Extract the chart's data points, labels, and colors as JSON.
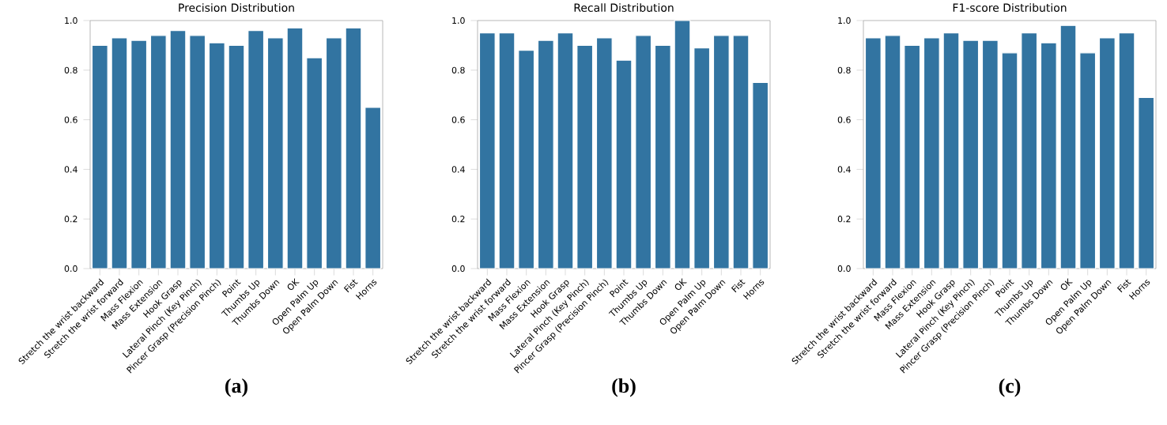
{
  "chart_data": [
    {
      "type": "bar",
      "title": "Precision Distribution",
      "categories": [
        "Stretch the wrist backward",
        "Stretch the wrist forward",
        "Mass Flexion",
        "Mass Extension",
        "Hook Grasp",
        "Lateral Pinch (Key Pinch)",
        "Pincer Grasp (Precision Pinch)",
        "Point",
        "Thumbs Up",
        "Thumbs Down",
        "OK",
        "Open Palm Up",
        "Open Palm Down",
        "Fist",
        "Horns"
      ],
      "values": [
        0.9,
        0.93,
        0.92,
        0.94,
        0.96,
        0.94,
        0.91,
        0.9,
        0.96,
        0.93,
        0.97,
        0.85,
        0.93,
        0.97,
        0.65
      ],
      "color": "#3274a1",
      "ylim": [
        0,
        1
      ],
      "yticks": [
        {
          "value": 0,
          "label": "0.0"
        },
        {
          "value": 0.2,
          "label": "0.2"
        },
        {
          "value": 0.4,
          "label": "0.4"
        },
        {
          "value": 0.6,
          "label": "0.6"
        },
        {
          "value": 0.8,
          "label": "0.8"
        },
        {
          "value": 1,
          "label": "1.0"
        }
      ],
      "annotations": [
        "(a)"
      ]
    },
    {
      "type": "bar",
      "title": "Recall Distribution",
      "categories": [
        "Stretch the wrist backward",
        "Stretch the wrist forward",
        "Mass Flexion",
        "Mass Extension",
        "Hook Grasp",
        "Lateral Pinch (Key Pinch)",
        "Pincer Grasp (Precision Pinch)",
        "Point",
        "Thumbs Up",
        "Thumbs Down",
        "OK",
        "Open Palm Up",
        "Open Palm Down",
        "Fist",
        "Horns"
      ],
      "values": [
        0.95,
        0.95,
        0.88,
        0.92,
        0.95,
        0.9,
        0.93,
        0.84,
        0.94,
        0.9,
        1.0,
        0.89,
        0.94,
        0.94,
        0.75
      ],
      "color": "#3274a1",
      "ylim": [
        0,
        1
      ],
      "yticks": [
        {
          "value": 0,
          "label": "0.0"
        },
        {
          "value": 0.2,
          "label": "0.2"
        },
        {
          "value": 0.4,
          "label": "0.4"
        },
        {
          "value": 0.6,
          "label": "0.6"
        },
        {
          "value": 0.8,
          "label": "0.8"
        },
        {
          "value": 1,
          "label": "1.0"
        }
      ],
      "annotations": [
        "(b)"
      ]
    },
    {
      "type": "bar",
      "title": "F1-score Distribution",
      "categories": [
        "Stretch the wrist backward",
        "Stretch the wrist forward",
        "Mass Flexion",
        "Mass Extension",
        "Hook Grasp",
        "Lateral Pinch (Key Pinch)",
        "Pincer Grasp (Precision Pinch)",
        "Point",
        "Thumbs Up",
        "Thumbs Down",
        "OK",
        "Open Palm Up",
        "Open Palm Down",
        "Fist",
        "Horns"
      ],
      "values": [
        0.93,
        0.94,
        0.9,
        0.93,
        0.95,
        0.92,
        0.92,
        0.87,
        0.95,
        0.91,
        0.98,
        0.87,
        0.93,
        0.95,
        0.69
      ],
      "color": "#3274a1",
      "ylim": [
        0,
        1
      ],
      "yticks": [
        {
          "value": 0,
          "label": "0.0"
        },
        {
          "value": 0.2,
          "label": "0.2"
        },
        {
          "value": 0.4,
          "label": "0.4"
        },
        {
          "value": 0.6,
          "label": "0.6"
        },
        {
          "value": 0.8,
          "label": "0.8"
        },
        {
          "value": 1,
          "label": "1.0"
        }
      ],
      "annotations": [
        "(c)"
      ]
    }
  ]
}
